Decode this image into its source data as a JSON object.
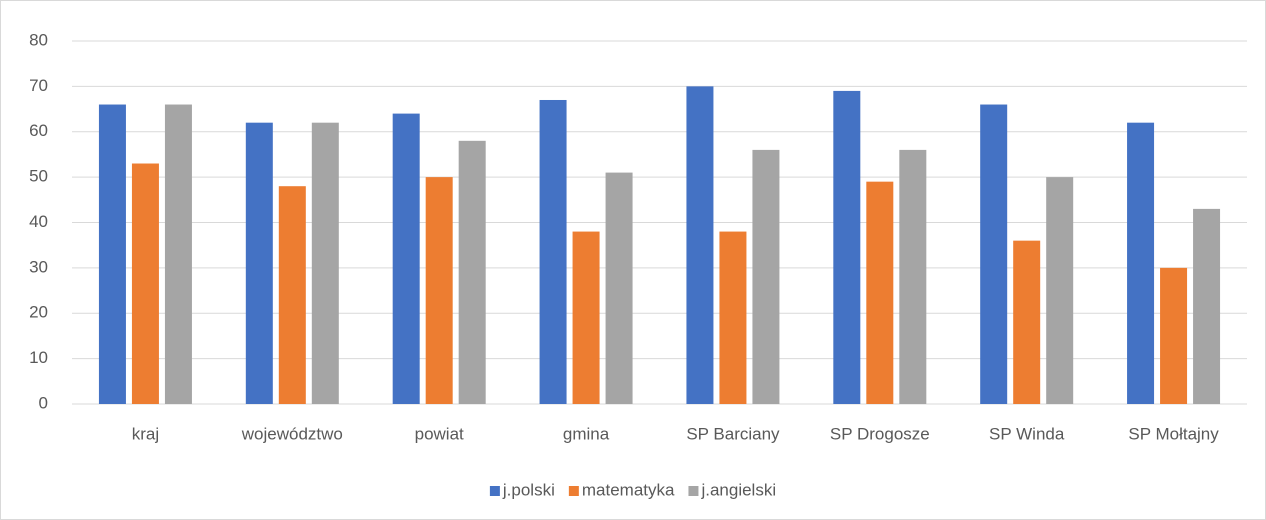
{
  "chart_data": {
    "type": "bar",
    "categories": [
      "kraj",
      "województwo",
      "powiat",
      "gmina",
      "SP Barciany",
      "SP Drogosze",
      "SP Winda",
      "SP Mołtajny"
    ],
    "series": [
      {
        "name": "j.polski",
        "color": "#4472c4",
        "values": [
          66,
          62,
          64,
          67,
          70,
          69,
          66,
          62
        ]
      },
      {
        "name": "matematyka",
        "color": "#ed7d31",
        "values": [
          53,
          48,
          50,
          38,
          38,
          49,
          36,
          30
        ]
      },
      {
        "name": "j.angielski",
        "color": "#a5a5a5",
        "values": [
          66,
          62,
          58,
          51,
          56,
          56,
          50,
          43
        ]
      }
    ],
    "ylim": [
      0,
      80
    ],
    "yticks": [
      0,
      10,
      20,
      30,
      40,
      50,
      60,
      70,
      80
    ],
    "grid": true,
    "legend": "bottom"
  }
}
